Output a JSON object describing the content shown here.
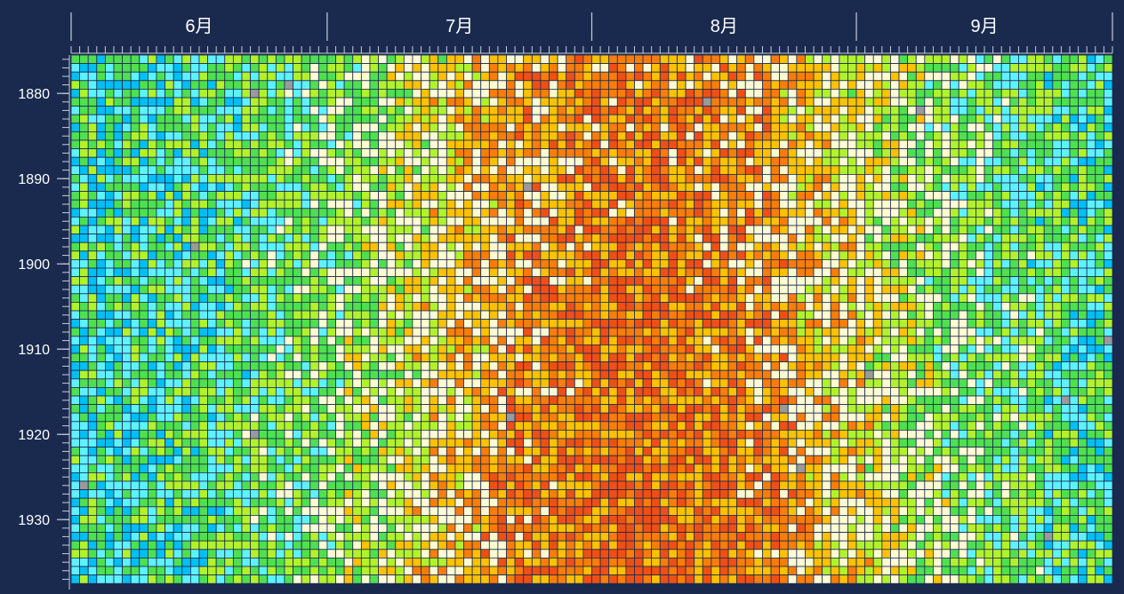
{
  "chart_data": {
    "type": "heatmap",
    "title": "",
    "xlabel": "",
    "ylabel": "",
    "x_month_labels": [
      "6月",
      "7月",
      "8月",
      "9月"
    ],
    "x_days_per_month": [
      30,
      31,
      31,
      30
    ],
    "y_tick_labels": [
      "1880",
      "1890",
      "1900",
      "1910",
      "1920",
      "1930"
    ],
    "y_range": [
      1876,
      1937
    ],
    "grid": true,
    "legend": "none",
    "value_levels": 8,
    "color_scale": [
      "#00bff3",
      "#5ef2ff",
      "#4fe04f",
      "#b2f22a",
      "#fffbd2",
      "#ffc100",
      "#f97d08",
      "#ef4f14"
    ],
    "missing_color": "#9a9a9a",
    "rows_seed_note": null
  }
}
